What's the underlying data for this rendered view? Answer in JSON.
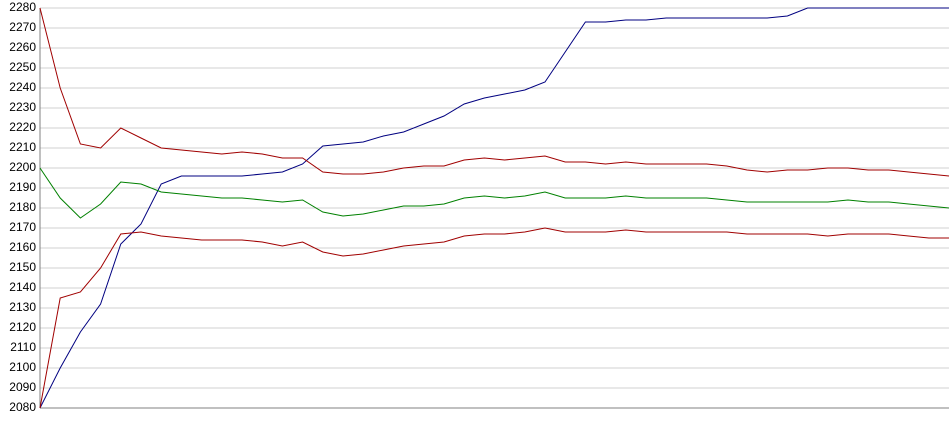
{
  "chart_data": {
    "type": "line",
    "categories": [
      null,
      null,
      null,
      null,
      null,
      null,
      null,
      null,
      null,
      null,
      null,
      null,
      null,
      null,
      null,
      null,
      null,
      null,
      null,
      null,
      null,
      null,
      null,
      null,
      null,
      null,
      null,
      null,
      null,
      null,
      null,
      null,
      null,
      null,
      null,
      null,
      null,
      null,
      null,
      null,
      null,
      null,
      null,
      null,
      null,
      null
    ],
    "series": [
      {
        "color": "#000080",
        "values": [
          2080,
          2100,
          2118,
          2132,
          2162,
          2172,
          2192,
          2196,
          2196,
          2196,
          2196,
          2197,
          2198,
          2202,
          2211,
          2212,
          2213,
          2216,
          2218,
          2222,
          2226,
          2232,
          2235,
          2237,
          2239,
          2243,
          2258,
          2273,
          2273,
          2274,
          2274,
          2275,
          2275,
          2275,
          2275,
          2275,
          2275,
          2276,
          2280,
          2280,
          2280,
          2280,
          2280,
          2280,
          2280,
          2280
        ]
      },
      {
        "color": "#a00000",
        "values": [
          2280,
          2240,
          2212,
          2210,
          2220,
          2215,
          2210,
          2209,
          2208,
          2207,
          2208,
          2207,
          2205,
          2205,
          2198,
          2197,
          2197,
          2198,
          2200,
          2201,
          2201,
          2204,
          2205,
          2204,
          2205,
          2206,
          2203,
          2203,
          2202,
          2203,
          2202,
          2202,
          2202,
          2202,
          2201,
          2199,
          2198,
          2199,
          2199,
          2200,
          2200,
          2199,
          2199,
          2198,
          2197,
          2196
        ]
      },
      {
        "color": "#008000",
        "values": [
          2200,
          2185,
          2175,
          2182,
          2193,
          2192,
          2188,
          2187,
          2186,
          2185,
          2185,
          2184,
          2183,
          2184,
          2178,
          2176,
          2177,
          2179,
          2181,
          2181,
          2182,
          2185,
          2186,
          2185,
          2186,
          2188,
          2185,
          2185,
          2185,
          2186,
          2185,
          2185,
          2185,
          2185,
          2184,
          2183,
          2183,
          2183,
          2183,
          2183,
          2184,
          2183,
          2183,
          2182,
          2181,
          2180
        ]
      },
      {
        "color": "#a00000",
        "values": [
          2080,
          2135,
          2138,
          2150,
          2167,
          2168,
          2166,
          2165,
          2164,
          2164,
          2164,
          2163,
          2161,
          2163,
          2158,
          2156,
          2157,
          2159,
          2161,
          2162,
          2163,
          2166,
          2167,
          2167,
          2168,
          2170,
          2168,
          2168,
          2168,
          2169,
          2168,
          2168,
          2168,
          2168,
          2168,
          2167,
          2167,
          2167,
          2167,
          2166,
          2167,
          2167,
          2167,
          2166,
          2165,
          2165
        ]
      }
    ],
    "ylim": [
      2080,
      2280
    ],
    "yticks": [
      2080,
      2090,
      2100,
      2110,
      2120,
      2130,
      2140,
      2150,
      2160,
      2170,
      2180,
      2190,
      2200,
      2210,
      2220,
      2230,
      2240,
      2250,
      2260,
      2270,
      2280
    ],
    "grid": true
  }
}
